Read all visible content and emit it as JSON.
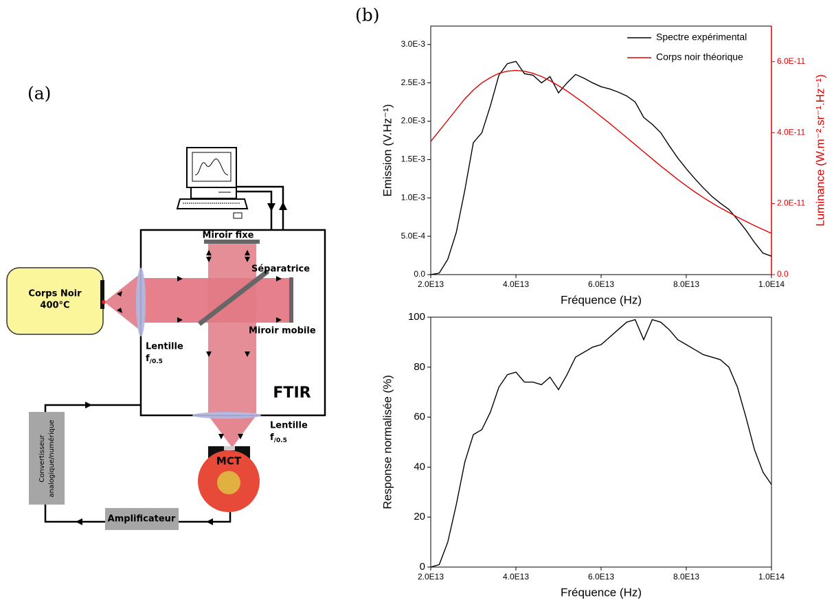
{
  "panels": [
    "(a)",
    "(b)"
  ],
  "diagram": {
    "black_body": [
      "Corps Noir",
      "400°C"
    ],
    "lens_1": {
      "name": "Lentille",
      "f": "f",
      "sub": "/0.5"
    },
    "fixed_mirror": "Miroir fixe",
    "splitter": "Séparatrice",
    "mobile_mirror": "Miroir mobile",
    "ftir": "FTIR",
    "lens_2": {
      "name": "Lentille",
      "f": "f",
      "sub": "/0.5"
    },
    "detector": "MCT",
    "converter": [
      "Convertisseur",
      "analogique/numérique"
    ],
    "amplifier": "Amplificateur"
  },
  "chart_data": [
    {
      "type": "line",
      "xlabel": "Fréquence (Hz)",
      "ylabel": "Emission (V.Hz⁻¹)",
      "y2label": "Luminance (W.m⁻².sr⁻¹.Hz⁻¹)",
      "x": [
        20000000000000.0,
        22000000000000.0,
        24000000000000.0,
        26000000000000.0,
        28000000000000.0,
        30000000000000.0,
        32000000000000.0,
        34000000000000.0,
        36000000000000.0,
        38000000000000.0,
        40000000000000.0,
        42000000000000.0,
        44000000000000.0,
        46000000000000.0,
        48000000000000.0,
        50000000000000.0,
        52000000000000.0,
        54000000000000.0,
        56000000000000.0,
        58000000000000.0,
        60000000000000.0,
        62000000000000.0,
        64000000000000.0,
        66000000000000.0,
        68000000000000.0,
        70000000000000.0,
        72000000000000.0,
        74000000000000.0,
        76000000000000.0,
        78000000000000.0,
        80000000000000.0,
        82000000000000.0,
        84000000000000.0,
        86000000000000.0,
        88000000000000.0,
        90000000000000.0,
        92000000000000.0,
        94000000000000.0,
        96000000000000.0,
        98000000000000.0,
        100000000000000.0
      ],
      "series": [
        {
          "name": "Spectre expérimental",
          "color": "#000000",
          "values": [
            0,
            2e-05,
            0.0002,
            0.00055,
            0.0011,
            0.00172,
            0.00185,
            0.0022,
            0.0026,
            0.00275,
            0.00278,
            0.00262,
            0.0026,
            0.0025,
            0.00258,
            0.00237,
            0.0025,
            0.00261,
            0.00256,
            0.0025,
            0.00245,
            0.00242,
            0.00238,
            0.00233,
            0.00225,
            0.00205,
            0.00196,
            0.00185,
            0.00168,
            0.00152,
            0.00138,
            0.00125,
            0.00113,
            0.00102,
            0.00093,
            0.00085,
            0.00072,
            0.00058,
            0.00042,
            0.00028,
            0.00024
          ]
        },
        {
          "name": "Corps noir théorique",
          "color": "#e00000",
          "axis": "y2",
          "values": [
            3.75e-11,
            4.05e-11,
            4.35e-11,
            4.65e-11,
            4.95e-11,
            5.2e-11,
            5.4e-11,
            5.55e-11,
            5.67e-11,
            5.73e-11,
            5.75e-11,
            5.73e-11,
            5.67e-11,
            5.58e-11,
            5.46e-11,
            5.32e-11,
            5.17e-11,
            5e-11,
            4.83e-11,
            4.64e-11,
            4.45e-11,
            4.26e-11,
            4.06e-11,
            3.86e-11,
            3.66e-11,
            3.46e-11,
            3.26e-11,
            3.06e-11,
            2.87e-11,
            2.68e-11,
            2.5e-11,
            2.33e-11,
            2.17e-11,
            2.02e-11,
            1.88e-11,
            1.75e-11,
            1.62e-11,
            1.5e-11,
            1.38e-11,
            1.27e-11,
            1.16e-11
          ]
        }
      ],
      "xlim": [
        20000000000000.0,
        100000000000000.0
      ],
      "xticks": [
        {
          "value": 20000000000000.0,
          "label": "2.0E13"
        },
        {
          "value": 40000000000000.0,
          "label": "4.0E13"
        },
        {
          "value": 60000000000000.0,
          "label": "6.0E13"
        },
        {
          "value": 80000000000000.0,
          "label": "8.0E13"
        },
        {
          "value": 100000000000000.0,
          "label": "1.0E14"
        }
      ],
      "ylim": [
        0,
        0.00324
      ],
      "yticks": [
        {
          "value": 0,
          "label": "0.0"
        },
        {
          "value": 0.0005,
          "label": "5.0E-4"
        },
        {
          "value": 0.001,
          "label": "1.0E-3"
        },
        {
          "value": 0.0015,
          "label": "1.5E-3"
        },
        {
          "value": 0.002,
          "label": "2.0E-3"
        },
        {
          "value": 0.0025,
          "label": "2.5E-3"
        },
        {
          "value": 0.003,
          "label": "3.0E-3"
        }
      ],
      "y2lim": [
        0,
        7e-11
      ],
      "y2ticks": [
        {
          "value": 0,
          "label": "0.0"
        },
        {
          "value": 2e-11,
          "label": "2.0E-11"
        },
        {
          "value": 4e-11,
          "label": "4.0E-11"
        },
        {
          "value": 6e-11,
          "label": "6.0E-11"
        }
      ],
      "y2color": "#e00000",
      "legend": "upper right"
    },
    {
      "type": "line",
      "xlabel": "Fréquence (Hz)",
      "ylabel": "Response normalisée (%)",
      "x": [
        20000000000000.0,
        22000000000000.0,
        24000000000000.0,
        26000000000000.0,
        28000000000000.0,
        30000000000000.0,
        32000000000000.0,
        34000000000000.0,
        36000000000000.0,
        38000000000000.0,
        40000000000000.0,
        42000000000000.0,
        44000000000000.0,
        46000000000000.0,
        48000000000000.0,
        50000000000000.0,
        52000000000000.0,
        54000000000000.0,
        56000000000000.0,
        58000000000000.0,
        60000000000000.0,
        62000000000000.0,
        64000000000000.0,
        66000000000000.0,
        68000000000000.0,
        70000000000000.0,
        72000000000000.0,
        74000000000000.0,
        76000000000000.0,
        78000000000000.0,
        80000000000000.0,
        82000000000000.0,
        84000000000000.0,
        86000000000000.0,
        88000000000000.0,
        90000000000000.0,
        92000000000000.0,
        94000000000000.0,
        96000000000000.0,
        98000000000000.0,
        100000000000000.0
      ],
      "series": [
        {
          "color": "#000000",
          "values": [
            0,
            1,
            10,
            25,
            42,
            53,
            55,
            62,
            72,
            77,
            78,
            74,
            74,
            73,
            76,
            71,
            77,
            84,
            86,
            88,
            89,
            92,
            95,
            98,
            99,
            91,
            99,
            98,
            95,
            91,
            89,
            87,
            85,
            84,
            83,
            80,
            72,
            60,
            47,
            38,
            33
          ]
        }
      ],
      "xlim": [
        20000000000000.0,
        100000000000000.0
      ],
      "xticks": [
        {
          "value": 20000000000000.0,
          "label": "2.0E13"
        },
        {
          "value": 40000000000000.0,
          "label": "4.0E13"
        },
        {
          "value": 60000000000000.0,
          "label": "6.0E13"
        },
        {
          "value": 80000000000000.0,
          "label": "8.0E13"
        },
        {
          "value": 100000000000000.0,
          "label": "1.0E14"
        }
      ],
      "ylim": [
        0,
        100
      ],
      "yticks": [
        0,
        20,
        40,
        60,
        80,
        100
      ]
    }
  ]
}
